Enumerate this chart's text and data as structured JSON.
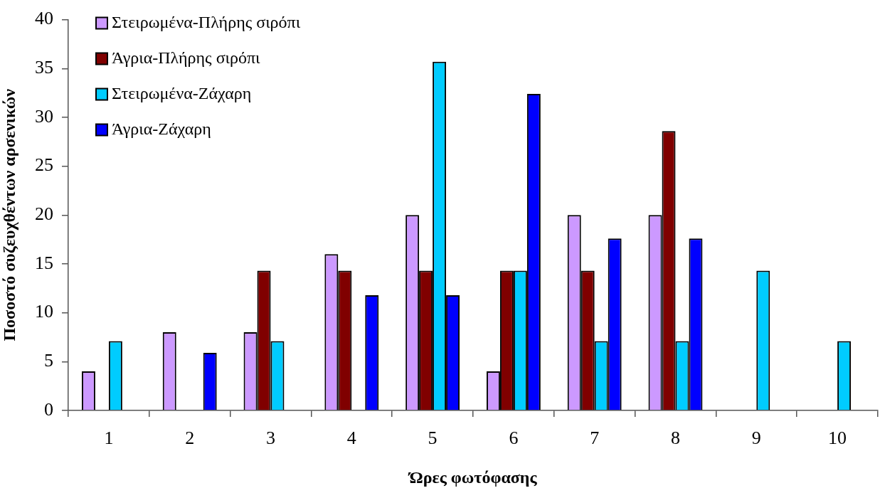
{
  "chart_data": {
    "type": "bar",
    "xlabel": "Ώρες φωτόφασης",
    "ylabel": "Ποσοστό συζευχθέντων αρσενικών",
    "categories": [
      "1",
      "2",
      "3",
      "4",
      "5",
      "6",
      "7",
      "8",
      "9",
      "10"
    ],
    "series": [
      {
        "name": "Στειρωμένα-Πλήρης σιρόπι",
        "color": "#cc99ff",
        "values": [
          4,
          8,
          8,
          16,
          20,
          4,
          20,
          20,
          null,
          null
        ]
      },
      {
        "name": "Άγρια-Πλήρης σιρόπι",
        "color": "#800000",
        "values": [
          null,
          null,
          14.3,
          14.3,
          14.3,
          14.3,
          14.3,
          28.6,
          null,
          null
        ]
      },
      {
        "name": "Στειρωμένα-Ζάχαρη",
        "color": "#00ccff",
        "values": [
          7.1,
          null,
          7.1,
          null,
          35.7,
          14.3,
          7.1,
          7.1,
          14.3,
          7.1
        ]
      },
      {
        "name": "Άγρια-Ζάχαρη",
        "color": "#0000ff",
        "values": [
          null,
          5.9,
          null,
          11.8,
          11.8,
          32.4,
          17.6,
          17.6,
          null,
          null
        ]
      }
    ],
    "ylim": [
      0,
      40
    ],
    "yticks": [
      0,
      5,
      10,
      15,
      20,
      25,
      30,
      35,
      40
    ],
    "grid": false,
    "legend": "top left"
  }
}
